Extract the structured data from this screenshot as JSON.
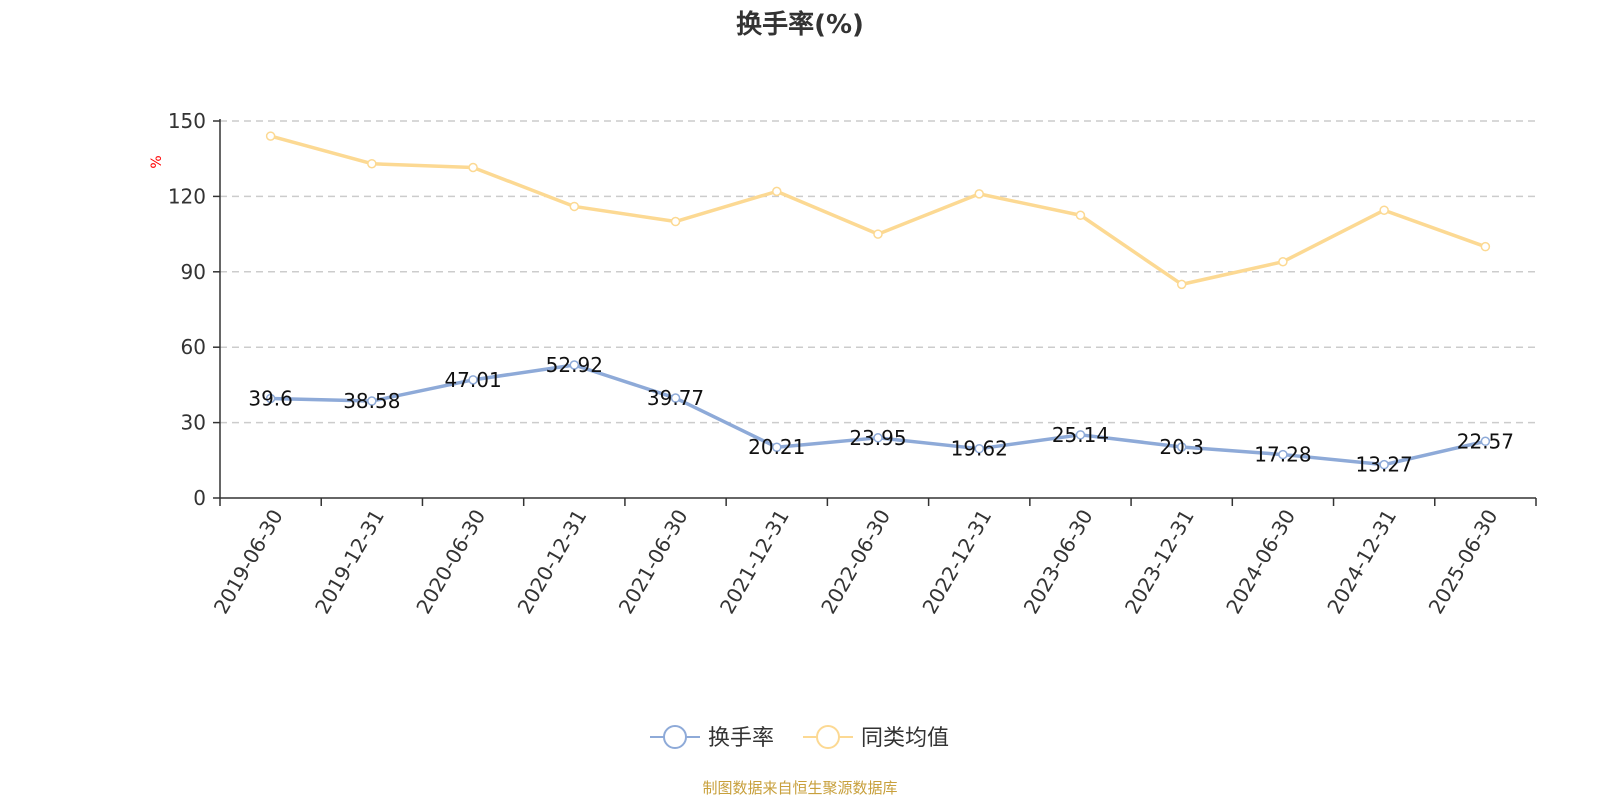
{
  "chart_data": {
    "type": "line",
    "title": "换手率(%)",
    "ylabel": "%",
    "ylim": [
      0,
      150
    ],
    "yticks": [
      0,
      30,
      60,
      90,
      120,
      150
    ],
    "grid": true,
    "legend_position": "bottom-center",
    "categories": [
      "2019-06-30",
      "2019-12-31",
      "2020-06-30",
      "2020-12-31",
      "2021-06-30",
      "2021-12-31",
      "2022-06-30",
      "2022-12-31",
      "2023-06-30",
      "2023-12-31",
      "2024-06-30",
      "2024-12-31",
      "2025-06-30"
    ],
    "series": [
      {
        "name": "换手率",
        "color": "#8eaad8",
        "show_labels": true,
        "values": [
          39.6,
          38.58,
          47.01,
          52.92,
          39.77,
          20.21,
          23.95,
          19.62,
          25.14,
          20.3,
          17.28,
          13.27,
          22.57
        ]
      },
      {
        "name": "同类均值",
        "color": "#fcd993",
        "show_labels": false,
        "values": [
          144,
          133,
          131.5,
          116,
          110,
          122,
          105,
          121,
          112.5,
          85,
          94,
          114.5,
          100
        ]
      }
    ]
  },
  "footer": {
    "source_text": "制图数据来自恒生聚源数据库",
    "source_color": "#c8a03c"
  }
}
